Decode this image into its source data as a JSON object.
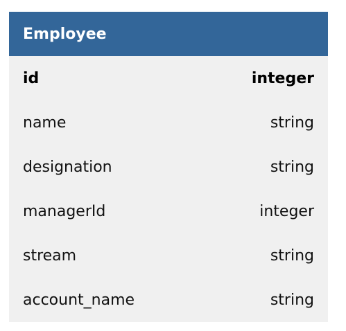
{
  "colors": {
    "header_bg": "#336699",
    "header_text": "#ffffff",
    "body_bg": "#f0f0f0",
    "text": "#111111"
  },
  "entity": {
    "title": "Employee",
    "fields": [
      {
        "name": "id",
        "type": "integer",
        "primary": true
      },
      {
        "name": "name",
        "type": "string",
        "primary": false
      },
      {
        "name": "designation",
        "type": "string",
        "primary": false
      },
      {
        "name": "managerId",
        "type": "integer",
        "primary": false
      },
      {
        "name": "stream",
        "type": "string",
        "primary": false
      },
      {
        "name": "account_name",
        "type": "string",
        "primary": false
      }
    ]
  }
}
